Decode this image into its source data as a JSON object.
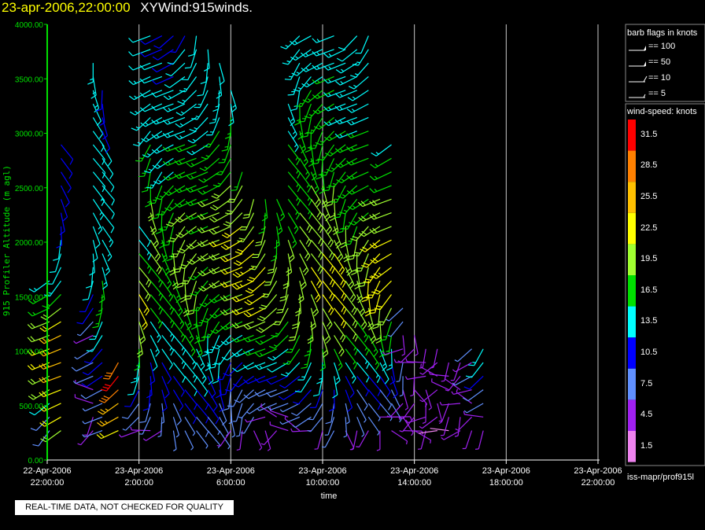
{
  "header": {
    "date_time": "23-apr-2006,22:00:00",
    "plot_name": "XYWind:915winds."
  },
  "legend": {
    "barb_title": "barb flags in knots",
    "barbs": [
      "== 100",
      "== 50",
      "== 10",
      "== 5"
    ],
    "speed_title": "wind-speed: knots",
    "scale": [
      {
        "label": "31.5",
        "color": "#ff0000"
      },
      {
        "label": "28.5",
        "color": "#ff8000"
      },
      {
        "label": "25.5",
        "color": "#ffc000"
      },
      {
        "label": "22.5",
        "color": "#ffff00"
      },
      {
        "label": "19.5",
        "color": "#a0ff30"
      },
      {
        "label": "16.5",
        "color": "#00e000"
      },
      {
        "label": "13.5",
        "color": "#00ffff"
      },
      {
        "label": "10.5",
        "color": "#0000ff"
      },
      {
        "label": "7.5",
        "color": "#6090ff"
      },
      {
        "label": "4.5",
        "color": "#a020f0"
      },
      {
        "label": "1.5",
        "color": "#ee82ee"
      }
    ]
  },
  "footer_source": "iss-mapr/prof915l",
  "notice": "REAL-TIME DATA, NOT CHECKED FOR QUALITY",
  "chart_data": {
    "type": "scatter",
    "description_kind": "wind barb time-height plot",
    "xlabel": "time",
    "ylabel": "915 Profiler Altitude (m agl)",
    "ylim": [
      0,
      4000
    ],
    "y_ticks": [
      "0.00",
      "500.00",
      "1000.00",
      "1500.00",
      "2000.00",
      "2500.00",
      "3000.00",
      "3500.00",
      "4000.00"
    ],
    "x_ticks": [
      {
        "date": "22-Apr-2006",
        "time": "22:00:00"
      },
      {
        "date": "23-Apr-2006",
        "time": "2:00:00"
      },
      {
        "date": "23-Apr-2006",
        "time": "6:00:00"
      },
      {
        "date": "23-Apr-2006",
        "time": "10:00:00"
      },
      {
        "date": "23-Apr-2006",
        "time": "14:00:00"
      },
      {
        "date": "23-Apr-2006",
        "time": "18:00:00"
      },
      {
        "date": "23-Apr-2006",
        "time": "22:00:00"
      }
    ],
    "grid": "vertical",
    "columns": [
      {
        "hour": 0.1,
        "top": 1700,
        "speeds": [
          8,
          8,
          12,
          18,
          20,
          22,
          22,
          20,
          18,
          16,
          15,
          14,
          16,
          20,
          24,
          28
        ]
      },
      {
        "hour": 0.6,
        "top": 2900,
        "speeds": [
          20,
          22,
          22,
          22,
          24,
          26,
          26,
          24,
          22,
          18,
          16,
          14,
          12,
          12,
          12,
          10,
          10,
          10,
          10,
          10,
          10,
          10,
          12,
          12,
          12,
          12,
          10
        ]
      },
      {
        "hour": 2.0,
        "top": 3700,
        "speeds": [
          4,
          4,
          4,
          5,
          6,
          8,
          6,
          5,
          6,
          10,
          10,
          12,
          12,
          12,
          12,
          12,
          14,
          14,
          13,
          12,
          12,
          12,
          12,
          12,
          12,
          14,
          14,
          14,
          30,
          30
        ]
      },
      {
        "hour": 2.4,
        "top": 3500,
        "speeds": [
          6,
          7,
          7,
          8,
          10,
          10,
          10,
          12,
          14,
          15,
          16,
          16,
          14,
          14,
          14,
          13,
          12,
          12,
          12,
          12,
          12,
          12,
          11,
          11,
          10,
          10,
          10,
          10
        ]
      },
      {
        "hour": 3.1,
        "top": 1200,
        "speeds": [
          22,
          24,
          26,
          28,
          30,
          28
        ]
      },
      {
        "hour": 4.0,
        "top": 2200,
        "speeds": [
          5,
          6,
          8,
          10,
          12,
          14,
          16,
          18,
          20,
          22,
          22,
          20,
          18,
          16,
          14,
          12,
          12,
          12
        ]
      },
      {
        "hour": 4.5,
        "top": 3900,
        "speeds": [
          4,
          6,
          8,
          9,
          10,
          11,
          12,
          13,
          14,
          15,
          16,
          16,
          17,
          18,
          18,
          18,
          19,
          18,
          17,
          16,
          15,
          15,
          14,
          14,
          13,
          13,
          13,
          12,
          12,
          12,
          12
        ]
      },
      {
        "hour": 5.0,
        "top": 3900,
        "speeds": [
          5,
          6,
          7,
          9,
          10,
          11,
          12,
          13,
          14,
          15,
          16,
          16,
          17,
          17,
          17,
          16,
          16,
          15,
          15,
          14,
          14,
          14,
          13,
          13,
          12,
          12,
          12,
          12,
          11,
          11,
          11
        ]
      },
      {
        "hour": 5.5,
        "top": 3900,
        "speeds": [
          6,
          7,
          8,
          10,
          11,
          12,
          13,
          14,
          15,
          16,
          17,
          17,
          18,
          18,
          17,
          17,
          16,
          16,
          15,
          14,
          14,
          14,
          13,
          13,
          12,
          12,
          11,
          11,
          11,
          10,
          10
        ]
      },
      {
        "hour": 6.0,
        "top": 4000,
        "speeds": [
          6,
          7,
          9,
          10,
          12,
          13,
          14,
          15,
          16,
          17,
          18,
          19,
          20,
          20,
          20,
          19,
          18,
          17,
          16,
          16,
          15,
          15,
          14,
          14,
          13,
          13,
          12,
          12,
          12,
          11,
          11,
          11
        ]
      },
      {
        "hour": 6.5,
        "top": 4000,
        "speeds": [
          7,
          8,
          9,
          11,
          12,
          13,
          14,
          15,
          16,
          17,
          18,
          18,
          19,
          19,
          19,
          18,
          18,
          17,
          16,
          16,
          15,
          15,
          14,
          14,
          14,
          13,
          13,
          12,
          12,
          12,
          11,
          11
        ]
      },
      {
        "hour": 7.0,
        "top": 3800,
        "speeds": [
          6,
          7,
          9,
          10,
          11,
          12,
          13,
          14,
          15,
          15,
          16,
          17,
          17,
          18,
          18,
          17,
          17,
          16,
          16,
          15,
          15,
          14,
          14,
          14,
          13,
          13,
          12,
          12,
          12,
          11
        ]
      },
      {
        "hour": 7.5,
        "top": 3700,
        "speeds": [
          6,
          7,
          8,
          9,
          10,
          12,
          13,
          14,
          15,
          16,
          17,
          18,
          19,
          20,
          20,
          19,
          18,
          18,
          17,
          16,
          16,
          15,
          15,
          14,
          14,
          13,
          13,
          12,
          12
        ]
      },
      {
        "hour": 8.0,
        "top": 3500,
        "speeds": [
          5,
          6,
          7,
          8,
          10,
          11,
          12,
          14,
          15,
          16,
          17,
          18,
          19,
          20,
          21,
          20,
          19,
          18,
          18,
          17,
          16,
          16,
          15,
          15,
          14,
          14,
          13,
          13
        ]
      },
      {
        "hour": 8.5,
        "top": 2700,
        "speeds": [
          5,
          6,
          7,
          8,
          9,
          10,
          12,
          14,
          16,
          18,
          20,
          21,
          22,
          22,
          22,
          21,
          20,
          19,
          18,
          17,
          16
        ]
      },
      {
        "hour": 9.0,
        "top": 2500,
        "speeds": [
          5,
          6,
          7,
          8,
          10,
          12,
          14,
          17,
          19,
          21,
          22,
          23,
          23,
          22,
          21,
          20,
          19,
          18,
          17
        ]
      },
      {
        "hour": 9.5,
        "top": 2500,
        "speeds": [
          4,
          5,
          6,
          8,
          10,
          12,
          15,
          17,
          19,
          21,
          22,
          22,
          21,
          20,
          19,
          18,
          17,
          17,
          16
        ]
      },
      {
        "hour": 10.0,
        "top": 2400,
        "speeds": [
          4,
          5,
          6,
          8,
          10,
          13,
          15,
          17,
          18,
          19,
          20,
          20,
          19,
          18,
          17,
          16,
          16,
          15
        ]
      },
      {
        "hour": 10.5,
        "top": 3300,
        "speeds": [
          5,
          5,
          6,
          8,
          10,
          12,
          14,
          16,
          17,
          18,
          18,
          19,
          19,
          18,
          18,
          17,
          17,
          16,
          16,
          15,
          15,
          15,
          14,
          14,
          14,
          13
        ]
      },
      {
        "hour": 11.0,
        "top": 3900,
        "speeds": [
          5,
          6,
          7,
          9,
          11,
          13,
          15,
          17,
          18,
          19,
          20,
          20,
          20,
          19,
          19,
          18,
          18,
          17,
          17,
          16,
          16,
          16,
          15,
          15,
          15,
          14,
          14,
          14,
          13,
          13,
          13
        ]
      },
      {
        "hour": 11.5,
        "top": 3900,
        "speeds": [
          5,
          6,
          8,
          10,
          12,
          14,
          16,
          17,
          18,
          19,
          20,
          21,
          21,
          20,
          20,
          19,
          19,
          18,
          18,
          17,
          17,
          16,
          16,
          15,
          15,
          15,
          14,
          14,
          14,
          13,
          13
        ]
      },
      {
        "hour": 12.0,
        "top": 3800,
        "speeds": [
          5,
          6,
          8,
          10,
          12,
          14,
          16,
          18,
          19,
          20,
          21,
          22,
          22,
          21,
          20,
          20,
          19,
          18,
          18,
          17,
          17,
          16,
          16,
          16,
          15,
          15,
          14,
          14,
          14,
          13
        ]
      },
      {
        "hour": 12.5,
        "top": 3900,
        "speeds": [
          6,
          7,
          8,
          10,
          12,
          14,
          16,
          18,
          20,
          21,
          22,
          22,
          21,
          21,
          20,
          19,
          19,
          18,
          18,
          17,
          17,
          16,
          16,
          16,
          15,
          15,
          15,
          14,
          14,
          14,
          13
        ]
      },
      {
        "hour": 13.0,
        "top": 3800,
        "speeds": [
          5,
          6,
          7,
          9,
          11,
          13,
          15,
          17,
          18,
          19,
          20,
          20,
          20,
          19,
          18,
          18,
          17,
          17,
          16,
          16,
          15,
          15,
          15,
          14,
          14,
          14,
          13,
          13,
          13,
          12
        ]
      },
      {
        "hour": 13.5,
        "top": 3900,
        "speeds": [
          5,
          6,
          7,
          8,
          10,
          12,
          14,
          16,
          17,
          18,
          19,
          19,
          19,
          18,
          18,
          17,
          17,
          16,
          16,
          15,
          15,
          15,
          14,
          14,
          14,
          13,
          13,
          13,
          12,
          12,
          12
        ]
      },
      {
        "hour": 14.0,
        "top": 3900,
        "speeds": [
          5,
          6,
          7,
          9,
          11,
          13,
          15,
          17,
          19,
          20,
          21,
          21,
          20,
          19,
          18,
          18,
          17,
          17,
          16,
          16,
          15,
          15,
          15,
          14,
          14,
          14,
          13,
          13,
          13,
          12,
          12
        ]
      },
      {
        "hour": 14.5,
        "top": 2400,
        "speeds": [
          4,
          5,
          6,
          8,
          10,
          12,
          14,
          16,
          18,
          20,
          22,
          23,
          23,
          22,
          21,
          20,
          19,
          18
        ]
      },
      {
        "hour": 15.0,
        "top": 3000,
        "speeds": [
          4,
          5,
          6,
          7,
          9,
          11,
          13,
          15,
          17,
          19,
          21,
          22,
          23,
          22,
          21,
          20,
          19,
          18,
          17,
          16,
          15,
          14,
          30
        ]
      },
      {
        "hour": 15.5,
        "top": 1400,
        "speeds": [
          4,
          4,
          5,
          5,
          6,
          6,
          5,
          5,
          6,
          6
        ]
      },
      {
        "hour": 16.0,
        "top": 1200,
        "speeds": [
          3,
          4,
          4,
          5,
          5,
          4,
          4,
          4
        ]
      },
      {
        "hour": 16.5,
        "top": 1100,
        "speeds": [
          3,
          3,
          4,
          4,
          4,
          3,
          3
        ]
      },
      {
        "hour": 17.0,
        "top": 1100,
        "speeds": [
          2,
          3,
          3,
          4,
          4,
          3,
          3
        ]
      },
      {
        "hour": 17.5,
        "top": 1000,
        "speeds": [
          2,
          3,
          3,
          4,
          4,
          3
        ]
      },
      {
        "hour": 18.0,
        "top": 1000,
        "speeds": [
          3,
          3,
          4,
          4,
          5,
          4
        ]
      },
      {
        "hour": 18.5,
        "top": 1100,
        "speeds": [
          3,
          3,
          4,
          5,
          6,
          5,
          7
        ]
      },
      {
        "hour": 19.0,
        "top": 1100,
        "speeds": [
          4,
          5,
          6,
          8,
          10,
          12,
          13
        ]
      }
    ]
  }
}
